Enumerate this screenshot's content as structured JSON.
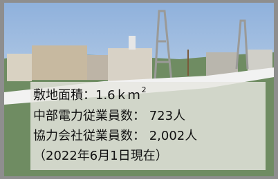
{
  "overlay": {
    "lines": [
      {
        "text": "敷地面積：1.6ｋｍ",
        "superscript": "2"
      },
      {
        "text": "中部電力従業員数： 723人"
      },
      {
        "text": "協力会社従業員数： 2,002人"
      },
      {
        "text": "（2022年6月1日現在）"
      }
    ]
  }
}
